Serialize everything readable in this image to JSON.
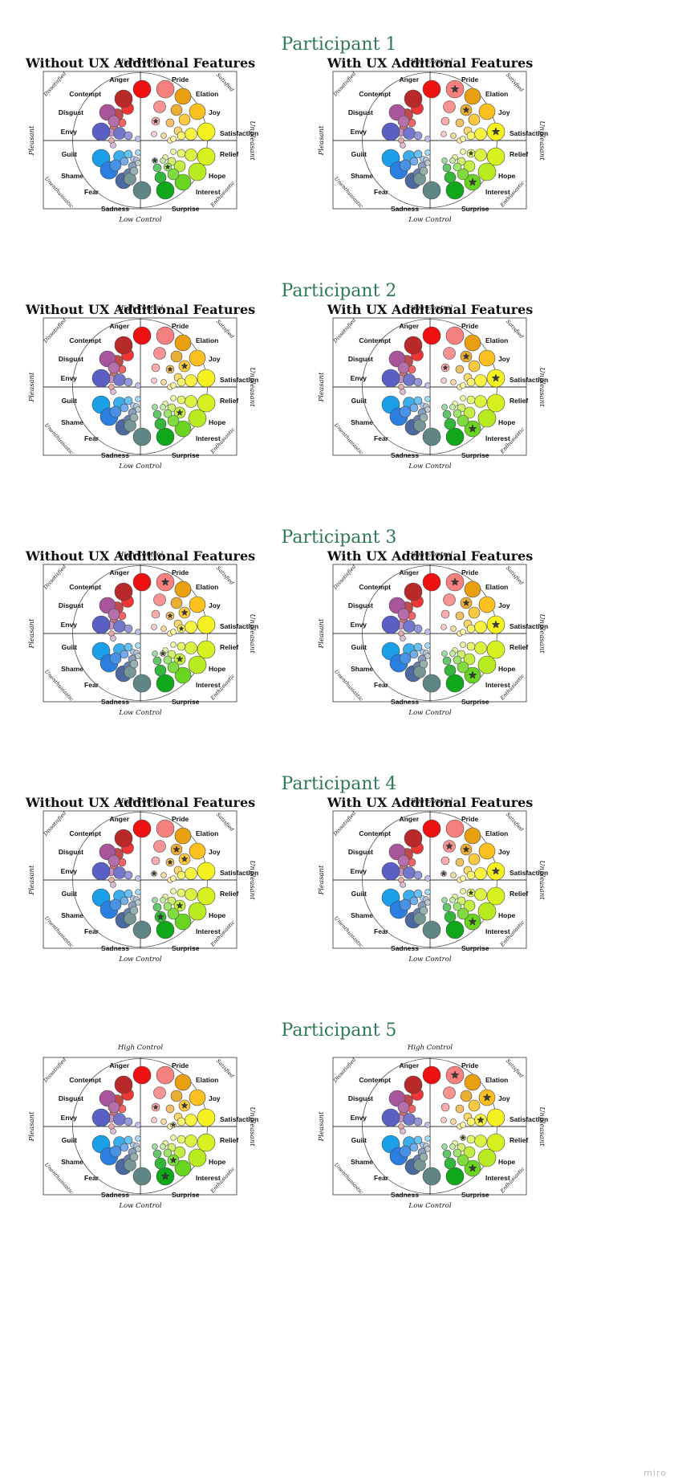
{
  "wheel": {
    "labels": {
      "high_control": "High Control",
      "low_control": "Low Control",
      "pleasant": "Pleasant",
      "unpleasant": "Unpleasant",
      "dissatisfied": "Dissatisfied",
      "satisfied": "Satisfied",
      "unenthusiastic": "Unenthusiastic",
      "enthusiastic": "Enthusiastic"
    },
    "emotions": [
      {
        "name": "Anger",
        "color": "#ee1111"
      },
      {
        "name": "Contempt",
        "color": "#b82a2a"
      },
      {
        "name": "Disgust",
        "color": "#a8559c"
      },
      {
        "name": "Envy",
        "color": "#5a5fc3"
      },
      {
        "name": "Guilt",
        "color": "#1a9fe8"
      },
      {
        "name": "Shame",
        "color": "#2a7fe0"
      },
      {
        "name": "Fear",
        "color": "#4d6aa0"
      },
      {
        "name": "Sadness",
        "color": "#5f8585"
      },
      {
        "name": "Pride",
        "color": "#f58080"
      },
      {
        "name": "Elation",
        "color": "#e8a010"
      },
      {
        "name": "Joy",
        "color": "#fac020"
      },
      {
        "name": "Satisfaction",
        "color": "#f5f020"
      },
      {
        "name": "Relief",
        "color": "#d6f020"
      },
      {
        "name": "Hope",
        "color": "#b8ea20"
      },
      {
        "name": "Interest",
        "color": "#6ad520"
      },
      {
        "name": "Surprise",
        "color": "#10a81a"
      }
    ]
  },
  "participants": [
    {
      "title": "Participant 1",
      "left_title": "Without UX Additional Features",
      "right_title": "With UX Additional Features",
      "left_stars": [
        "Pride-3",
        "Interest-3",
        "Surprise-4"
      ],
      "right_stars": [
        "Pride-1",
        "Elation-2",
        "Satisfaction-1",
        "Relief-3",
        "Interest-1"
      ]
    },
    {
      "title": "Participant 2",
      "left_title": "Without UX Additional Features",
      "right_title": "With UX Additional Features",
      "left_stars": [
        "Elation-3",
        "Joy-2",
        "Hope-2"
      ],
      "right_stars": [
        "Pride-3",
        "Elation-2",
        "Satisfaction-1",
        "Interest-1"
      ]
    },
    {
      "title": "Participant 3",
      "left_title": "Without UX Additional Features",
      "right_title": "With UX Additional Features",
      "left_stars": [
        "Pride-1",
        "Elation-3",
        "Joy-2",
        "Satisfaction-3",
        "Interest-4",
        "Hope-2"
      ],
      "right_stars": [
        "Pride-1",
        "Elation-2",
        "Satisfaction-1",
        "Interest-1"
      ]
    },
    {
      "title": "Participant 4",
      "left_title": "Without UX Additional Features",
      "right_title": "With UX Additional Features",
      "left_stars": [
        "Elation-2",
        "Joy-2",
        "Pride-4",
        "Elation-3",
        "Surprise-2",
        "Hope-2"
      ],
      "right_stars": [
        "Elation-2",
        "Pride-2",
        "Satisfaction-1",
        "Pride-4",
        "Relief-3",
        "Interest-1"
      ]
    },
    {
      "title": "Participant 5",
      "left_title": "",
      "right_title": "",
      "left_stars": [
        "Pride-3",
        "Joy-2",
        "Satisfaction-4",
        "Interest-2",
        "Surprise-1"
      ],
      "right_stars": [
        "Pride-1",
        "Joy-1",
        "Satisfaction-2",
        "Relief-4",
        "Interest-1"
      ]
    }
  ],
  "footer": {
    "brand": "miro"
  }
}
